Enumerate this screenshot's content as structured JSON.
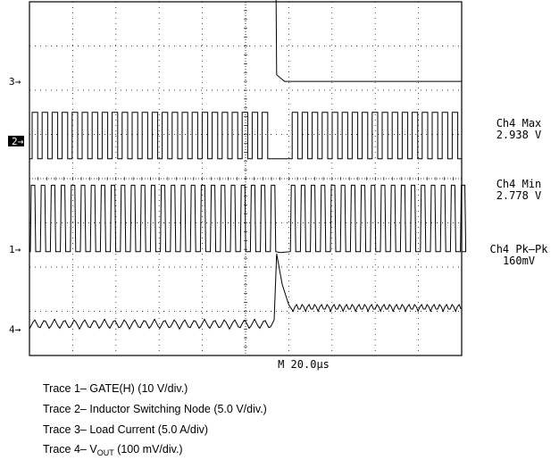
{
  "chart_data": {
    "type": "line",
    "title": "",
    "xlabel": "",
    "ylabel": "",
    "timebase": "M 20.0µs",
    "divisions": {
      "x": 10,
      "y": 8
    },
    "channel_markers": [
      {
        "label": "3",
        "div_level": 6.2
      },
      {
        "label": "2",
        "div_level": 4.85
      },
      {
        "label": "1",
        "div_level": 2.4
      },
      {
        "label": "4",
        "div_level": 0.6
      }
    ],
    "series": [
      {
        "name": "Trace 1",
        "points": [
          [
            0,
            2.35
          ],
          [
            5.7,
            2.35
          ],
          [
            5.7,
            2.4
          ],
          [
            10,
            2.35
          ]
        ],
        "switching": true,
        "switch_amplitude_div": 1.5
      },
      {
        "name": "Trace 2",
        "switching": true,
        "low_div": 4.45,
        "high_div": 5.5
      },
      {
        "name": "Trace 3",
        "points": [
          [
            0,
            8.85
          ],
          [
            5.7,
            8.85
          ],
          [
            5.72,
            6.35
          ],
          [
            5.9,
            6.2
          ],
          [
            10,
            6.2
          ]
        ]
      },
      {
        "name": "Trace 4",
        "points": [
          [
            0,
            0.6
          ],
          [
            5.7,
            0.6
          ],
          [
            5.78,
            2.3
          ],
          [
            6.1,
            1.0
          ],
          [
            10,
            1.0
          ]
        ],
        "ripple_div": 0.22
      }
    ],
    "measurements": [
      {
        "name": "Ch4 Max",
        "value": "2.938 V"
      },
      {
        "name": "Ch4 Min",
        "value": "2.778 V"
      },
      {
        "name": "Ch4 Pk–Pk",
        "value": "160mV"
      }
    ]
  },
  "legend": [
    {
      "prefix": "Trace 1",
      "text": "GATE(H) (10 V/div.)"
    },
    {
      "prefix": "Trace 2",
      "text": "Inductor Switching Node (5.0 V/div.)"
    },
    {
      "prefix": "Trace 3",
      "text": "Load Current (5.0 A/div)"
    },
    {
      "prefix": "Trace 4",
      "text": "V",
      "sub": "OUT",
      "suffix": "(100 mV/div.)"
    }
  ]
}
